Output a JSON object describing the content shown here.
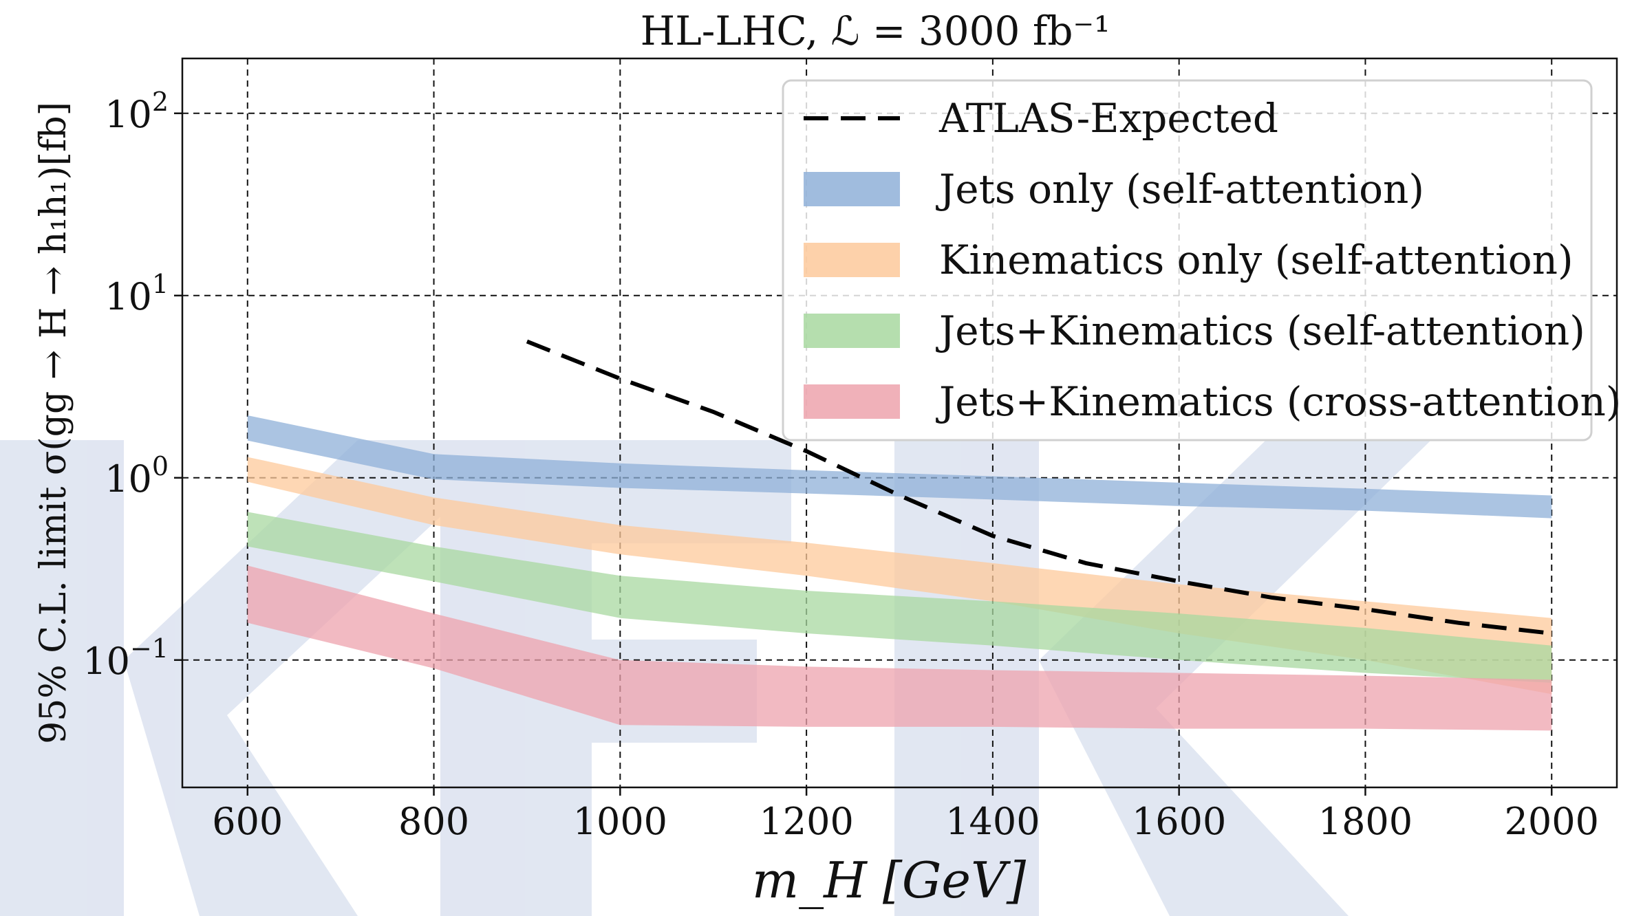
{
  "chart_data": {
    "type": "line",
    "title": "HL-LHC, ℒ = 3000 fb⁻¹",
    "xlabel": "m_H [GeV]",
    "ylabel": "95% C.L. limit σ(gg → H → h₁h₁)[fb]",
    "xlim": [
      530,
      2070
    ],
    "ylim": [
      0.02,
      200
    ],
    "yscale": "log",
    "grid": true,
    "legend_position": "top-right",
    "x_ticks": [
      600,
      800,
      1000,
      1200,
      1400,
      1600,
      1800,
      2000
    ],
    "x_tick_labels": [
      "600",
      "800",
      "1000",
      "1200",
      "1400",
      "1600",
      "1800",
      "2000"
    ],
    "y_ticks": [
      0.1,
      1,
      10,
      100
    ],
    "y_tick_labels": [
      {
        "base": "10",
        "exp": "−1"
      },
      {
        "base": "10",
        "exp": "0"
      },
      {
        "base": "10",
        "exp": "1"
      },
      {
        "base": "10",
        "exp": "2"
      }
    ],
    "series": [
      {
        "name": "ATLAS-Expected",
        "kind": "line",
        "style": "dashed",
        "color": "#000000",
        "x": [
          900,
          1000,
          1100,
          1200,
          1300,
          1400,
          1500,
          1600,
          1700,
          1800,
          1900,
          2000
        ],
        "y": [
          5.6,
          3.5,
          2.3,
          1.4,
          0.8,
          0.48,
          0.34,
          0.27,
          0.22,
          0.19,
          0.16,
          0.14
        ]
      },
      {
        "name": "Jets only (self-attention)",
        "kind": "band",
        "color": "#8fb0d8",
        "x": [
          600,
          800,
          1000,
          1200,
          1400,
          1600,
          1800,
          2000
        ],
        "y_low": [
          1.6,
          0.98,
          0.88,
          0.82,
          0.76,
          0.7,
          0.66,
          0.6
        ],
        "y_high": [
          2.2,
          1.35,
          1.2,
          1.1,
          1.02,
          0.94,
          0.87,
          0.8
        ]
      },
      {
        "name": "Kinematics only (self-attention)",
        "kind": "band",
        "color": "#fdc99b",
        "x": [
          600,
          800,
          1000,
          1200,
          1400,
          1600,
          1800,
          2000
        ],
        "y_low": [
          0.95,
          0.55,
          0.38,
          0.29,
          0.21,
          0.14,
          0.1,
          0.065
        ],
        "y_high": [
          1.3,
          0.78,
          0.55,
          0.44,
          0.34,
          0.26,
          0.21,
          0.17
        ]
      },
      {
        "name": "Jets+Kinematics (self-attention)",
        "kind": "band",
        "color": "#a8d8a0",
        "x": [
          600,
          800,
          1000,
          1200,
          1400,
          1600,
          1800,
          2000
        ],
        "y_low": [
          0.42,
          0.27,
          0.17,
          0.14,
          0.12,
          0.1,
          0.085,
          0.075
        ],
        "y_high": [
          0.65,
          0.42,
          0.29,
          0.24,
          0.21,
          0.18,
          0.15,
          0.12
        ]
      },
      {
        "name": "Jets+Kinematics (cross-attention)",
        "kind": "band",
        "color": "#eda3ad",
        "x": [
          600,
          800,
          1000,
          1200,
          1400,
          1600,
          1800,
          2000
        ],
        "y_low": [
          0.16,
          0.09,
          0.044,
          0.043,
          0.043,
          0.042,
          0.042,
          0.041
        ],
        "y_high": [
          0.33,
          0.18,
          0.1,
          0.092,
          0.088,
          0.085,
          0.082,
          0.078
        ]
      }
    ]
  }
}
